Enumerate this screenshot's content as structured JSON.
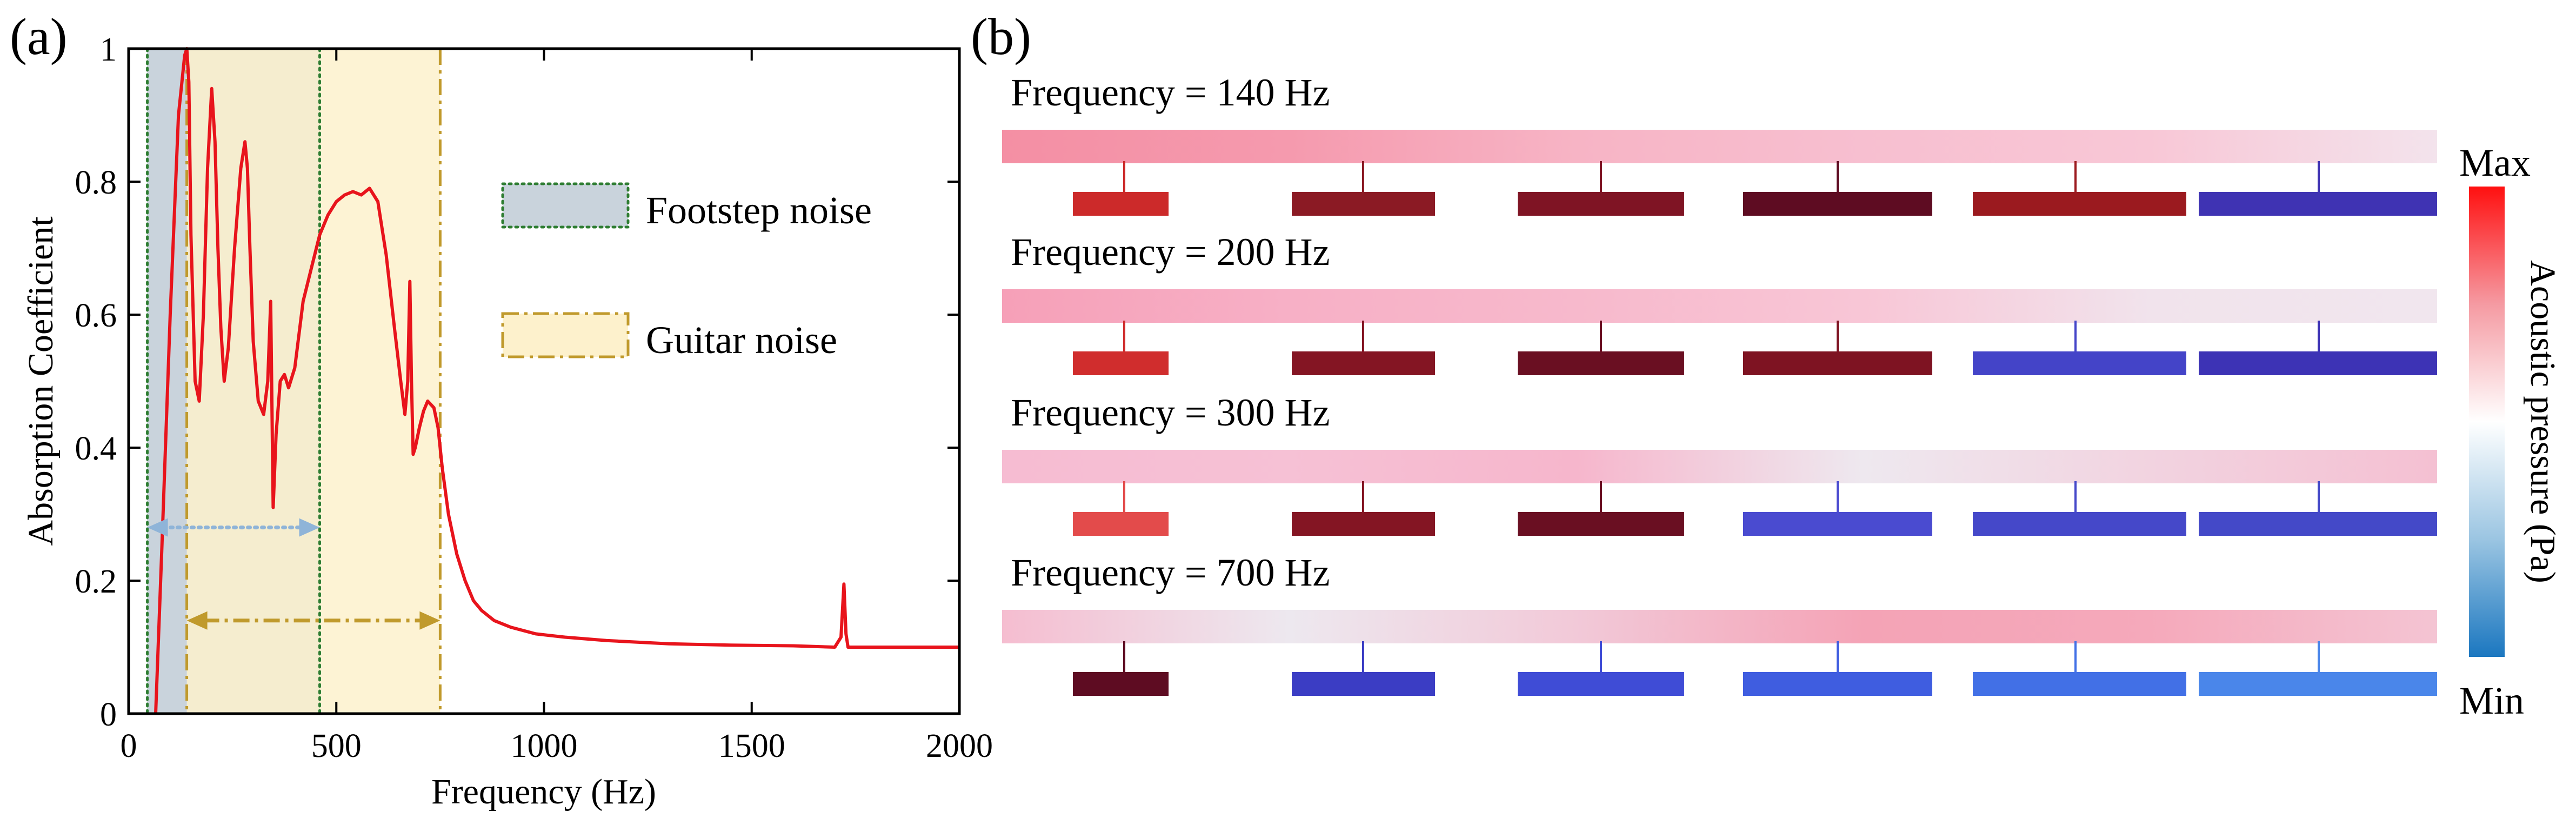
{
  "panel_a": {
    "label": "(a)",
    "chart_data": {
      "type": "line",
      "title": "",
      "xlabel": "Frequency (Hz)",
      "ylabel": "Absorption Coefficient",
      "xlim": [
        0,
        2000
      ],
      "ylim": [
        0,
        1
      ],
      "x_ticks": [
        0,
        500,
        1000,
        1500,
        2000
      ],
      "y_ticks": [
        0,
        0.2,
        0.4,
        0.6,
        0.8,
        1
      ],
      "x_tick_labels": [
        "0",
        "500",
        "1000",
        "1500",
        "2000"
      ],
      "y_tick_labels": [
        "0",
        "0.2",
        "0.4",
        "0.6",
        "0.8",
        "1"
      ],
      "grid": false,
      "series": [
        {
          "name": "absorption",
          "color": "#e8141c",
          "x": [
            65,
            80,
            100,
            120,
            135,
            140,
            145,
            150,
            160,
            170,
            180,
            190,
            200,
            208,
            215,
            222,
            230,
            240,
            255,
            270,
            280,
            286,
            292,
            300,
            312,
            325,
            335,
            342,
            348,
            355,
            365,
            375,
            385,
            400,
            420,
            440,
            460,
            480,
            500,
            520,
            540,
            560,
            580,
            600,
            620,
            640,
            655,
            665,
            672,
            677,
            681,
            685,
            690,
            700,
            710,
            720,
            735,
            745,
            755,
            770,
            790,
            810,
            830,
            850,
            880,
            920,
            980,
            1050,
            1150,
            1300,
            1450,
            1600,
            1700,
            1715,
            1722,
            1727,
            1732,
            1740,
            1760,
            1850,
            2000
          ],
          "y": [
            0.0,
            0.25,
            0.6,
            0.9,
            0.99,
            1.0,
            0.95,
            0.72,
            0.5,
            0.47,
            0.6,
            0.82,
            0.94,
            0.86,
            0.7,
            0.58,
            0.5,
            0.55,
            0.7,
            0.82,
            0.86,
            0.82,
            0.7,
            0.56,
            0.47,
            0.45,
            0.5,
            0.62,
            0.31,
            0.42,
            0.5,
            0.51,
            0.49,
            0.52,
            0.62,
            0.67,
            0.72,
            0.75,
            0.77,
            0.78,
            0.785,
            0.78,
            0.79,
            0.77,
            0.69,
            0.58,
            0.5,
            0.45,
            0.5,
            0.65,
            0.5,
            0.39,
            0.4,
            0.43,
            0.455,
            0.47,
            0.46,
            0.43,
            0.37,
            0.3,
            0.24,
            0.2,
            0.17,
            0.155,
            0.14,
            0.13,
            0.12,
            0.115,
            0.11,
            0.105,
            0.103,
            0.102,
            0.1,
            0.115,
            0.195,
            0.12,
            0.1,
            0.1,
            0.1,
            0.1,
            0.1
          ]
        }
      ],
      "regions": [
        {
          "name": "Footstep noise",
          "x0": 45,
          "x1": 460,
          "color": "#c9d3dc",
          "edge": "#2e7d32",
          "style": "dotted"
        },
        {
          "name": "Guitar noise",
          "x0": 140,
          "x1": 750,
          "color": "#fdf1cc",
          "edge": "#c09a2c",
          "style": "dashdot"
        }
      ],
      "annotations": [
        {
          "name": "footstep-range-arrow",
          "x0": 45,
          "x1": 460,
          "y": 0.28,
          "color": "#8fb4d8",
          "style": "dotted"
        },
        {
          "name": "guitar-range-arrow",
          "x0": 140,
          "x1": 750,
          "y": 0.14,
          "color": "#c09a2c",
          "style": "dashdot"
        }
      ],
      "legend": {
        "placement": "right",
        "entries": [
          "Footstep noise",
          "Guitar noise"
        ]
      }
    }
  },
  "panel_b": {
    "label": "(b)",
    "rows": [
      {
        "label": "Frequency = 140 Hz",
        "pipe": [
          "#f48fa4",
          "#f59aae",
          "#f7b4c5",
          "#f7bfd0",
          "#f8c7d6",
          "#f3e3ec"
        ],
        "boxes": [
          "#cc2a2a",
          "#8b1a24",
          "#7f1424",
          "#5e0c22",
          "#9b1a1f",
          "#3f33b3"
        ]
      },
      {
        "label": "Frequency = 200 Hz",
        "pipe": [
          "#f6a0b8",
          "#f7b0c6",
          "#f7b9cc",
          "#f8c6d6",
          "#f1e3ec",
          "#f1e6ee"
        ],
        "boxes": [
          "#d02d2d",
          "#841523",
          "#6a0f22",
          "#7e1322",
          "#4444c8",
          "#3d33b5"
        ]
      },
      {
        "label": "Frequency = 300 Hz",
        "pipe": [
          "#f6bcd2",
          "#f6c1d5",
          "#f6b6cc",
          "#eee8ef",
          "#f2d3e0",
          "#f4c0d2"
        ],
        "boxes": [
          "#e34b4b",
          "#841523",
          "#6a0f22",
          "#4a4bd0",
          "#4548c9",
          "#4449c8"
        ]
      },
      {
        "label": "Frequency = 700 Hz",
        "pipe": [
          "#f5bdd0",
          "#ede8ef",
          "#f2c9d8",
          "#f4a3b6",
          "#f5a9bb",
          "#f4c4d3"
        ],
        "boxes": [
          "#5e0c22",
          "#3b3dc4",
          "#3f4cd6",
          "#3f5de0",
          "#4270e6",
          "#4a86ea"
        ]
      }
    ],
    "colorbar": {
      "max_label": "Max",
      "min_label": "Min",
      "title": "Acoustic pressure (Pa)",
      "colors": [
        "#1b77c0",
        "#9bc5e2",
        "#ffffff",
        "#f59aa2",
        "#ff1010"
      ]
    }
  }
}
